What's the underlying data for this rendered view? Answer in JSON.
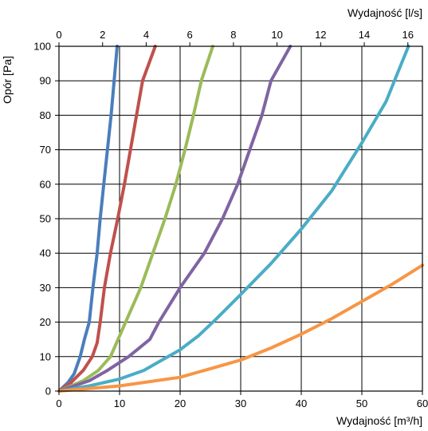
{
  "chart_data": {
    "type": "line",
    "x_bottom": {
      "label": "Wydajność [m³/h]",
      "range": [
        0,
        60
      ],
      "ticks": [
        "0",
        "10",
        "20",
        "30",
        "40",
        "50",
        "60"
      ]
    },
    "x_top": {
      "label": "Wydajność [l/s]",
      "range": [
        0,
        16.667
      ],
      "ticks": [
        "0",
        "2",
        "4",
        "6",
        "8",
        "10",
        "12",
        "14",
        "16"
      ]
    },
    "y": {
      "label": "Opór [Pa]",
      "range": [
        0,
        100
      ],
      "ticks": [
        "0",
        "10",
        "20",
        "30",
        "40",
        "50",
        "60",
        "70",
        "80",
        "90",
        "100"
      ]
    },
    "grid": true,
    "series": [
      {
        "color": "#4a7ebb",
        "points": [
          [
            0,
            0
          ],
          [
            1.5,
            2.5
          ],
          [
            2.5,
            5
          ],
          [
            3.5,
            10
          ],
          [
            4.2,
            15
          ],
          [
            5,
            20
          ],
          [
            5.6,
            30
          ],
          [
            6.3,
            40
          ],
          [
            6.8,
            50
          ],
          [
            7.4,
            60
          ],
          [
            8,
            70
          ],
          [
            8.6,
            80
          ],
          [
            9.1,
            90
          ],
          [
            9.6,
            100
          ]
        ]
      },
      {
        "color": "#c0504d",
        "points": [
          [
            0,
            0
          ],
          [
            2,
            2.5
          ],
          [
            4,
            6
          ],
          [
            5.5,
            10
          ],
          [
            6.3,
            14
          ],
          [
            6.8,
            20
          ],
          [
            7.5,
            30
          ],
          [
            8.5,
            40
          ],
          [
            9.7,
            50
          ],
          [
            10.8,
            60
          ],
          [
            11.8,
            70
          ],
          [
            12.8,
            80
          ],
          [
            13.8,
            90
          ],
          [
            15.9,
            100
          ]
        ]
      },
      {
        "color": "#9bbb59",
        "points": [
          [
            0,
            0
          ],
          [
            4,
            3
          ],
          [
            6.5,
            6
          ],
          [
            8.5,
            10
          ],
          [
            11,
            20
          ],
          [
            13.5,
            30
          ],
          [
            15.5,
            40
          ],
          [
            17.5,
            50
          ],
          [
            19.3,
            60
          ],
          [
            20.8,
            70
          ],
          [
            22.2,
            80
          ],
          [
            23.5,
            90
          ],
          [
            25.4,
            100
          ]
        ]
      },
      {
        "color": "#8064a2",
        "points": [
          [
            0,
            0
          ],
          [
            5,
            3
          ],
          [
            8,
            6
          ],
          [
            11.5,
            10
          ],
          [
            15,
            15
          ],
          [
            16.5,
            20
          ],
          [
            20,
            30
          ],
          [
            24,
            40
          ],
          [
            27,
            50
          ],
          [
            29.5,
            60
          ],
          [
            31.5,
            70
          ],
          [
            33.5,
            80
          ],
          [
            35,
            90
          ],
          [
            38.2,
            100
          ]
        ]
      },
      {
        "color": "#4bacc6",
        "points": [
          [
            0,
            0
          ],
          [
            5,
            1.5
          ],
          [
            10,
            3.5
          ],
          [
            14,
            6
          ],
          [
            17,
            9
          ],
          [
            20,
            12
          ],
          [
            23,
            16
          ],
          [
            26,
            21
          ],
          [
            30,
            28
          ],
          [
            35,
            37
          ],
          [
            40,
            47
          ],
          [
            45,
            58
          ],
          [
            50,
            72
          ],
          [
            54,
            84
          ],
          [
            57.7,
            100
          ]
        ]
      },
      {
        "color": "#f79646",
        "points": [
          [
            0,
            0
          ],
          [
            10,
            1.5
          ],
          [
            20,
            4
          ],
          [
            25,
            6.5
          ],
          [
            30,
            9
          ],
          [
            35,
            12.5
          ],
          [
            40,
            16.5
          ],
          [
            45,
            21
          ],
          [
            50,
            26
          ],
          [
            55,
            31
          ],
          [
            60,
            36.5
          ]
        ]
      }
    ]
  }
}
